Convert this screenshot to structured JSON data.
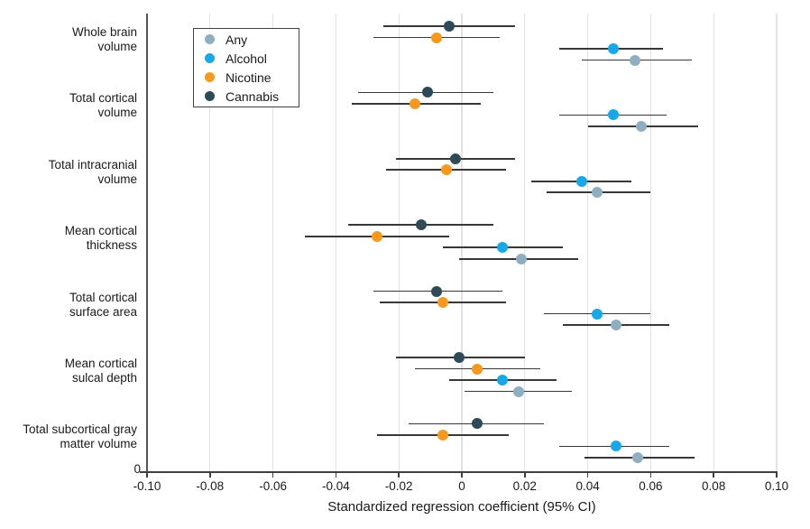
{
  "chart_data": {
    "type": "forest",
    "title": "",
    "xlabel": "Standardized regression coefficient (95% CI)",
    "ylabel": "",
    "y_zero_label": "0",
    "xlim": [
      -0.1,
      0.1
    ],
    "grid": true,
    "legend_position": "inside-top-left",
    "x_tick_values": [
      -0.1,
      -0.08,
      -0.06,
      -0.04,
      -0.02,
      0,
      0.02,
      0.04,
      0.06,
      0.08,
      0.1
    ],
    "x_tick_labels": [
      "-0.10",
      "-0.08",
      "-0.06",
      "-0.04",
      "-0.02",
      "0",
      "0.02",
      "0.04",
      "0.06",
      "0.08",
      "0.10"
    ],
    "categories": [
      "Whole brain volume",
      "Total cortical volume",
      "Total intracranial volume",
      "Mean cortical thickness",
      "Total cortical surface area",
      "Mean cortical sulcal depth",
      "Total subcortical gray matter volume"
    ],
    "category_label_lines": [
      [
        "Whole brain",
        "volume"
      ],
      [
        "Total cortical",
        "volume"
      ],
      [
        "Total intracranial",
        "volume"
      ],
      [
        "Mean cortical",
        "thickness"
      ],
      [
        "Total cortical",
        "surface area"
      ],
      [
        "Mean cortical",
        "sulcal depth"
      ],
      [
        "Total subcortical gray",
        "matter volume"
      ]
    ],
    "series": [
      {
        "name": "Any",
        "color": "#8FAFC0",
        "est": [
          0.055,
          0.057,
          0.043,
          0.019,
          0.049,
          0.018,
          0.056
        ],
        "lo": [
          0.038,
          0.04,
          0.027,
          -0.001,
          0.032,
          0.001,
          0.039
        ],
        "hi": [
          0.073,
          0.075,
          0.06,
          0.037,
          0.066,
          0.035,
          0.074
        ]
      },
      {
        "name": "Alcohol",
        "color": "#18A7E9",
        "est": [
          0.048,
          0.048,
          0.038,
          0.013,
          0.043,
          0.013,
          0.049
        ],
        "lo": [
          0.031,
          0.031,
          0.022,
          -0.006,
          0.026,
          -0.004,
          0.031
        ],
        "hi": [
          0.064,
          0.065,
          0.054,
          0.032,
          0.06,
          0.03,
          0.066
        ]
      },
      {
        "name": "Nicotine",
        "color": "#F8991D",
        "est": [
          -0.008,
          -0.015,
          -0.005,
          -0.027,
          -0.006,
          0.005,
          -0.006
        ],
        "lo": [
          -0.028,
          -0.035,
          -0.024,
          -0.05,
          -0.026,
          -0.015,
          -0.027
        ],
        "hi": [
          0.012,
          0.006,
          0.014,
          -0.004,
          0.014,
          0.025,
          0.015
        ]
      },
      {
        "name": "Cannabis",
        "color": "#2E4A58",
        "est": [
          -0.004,
          -0.011,
          -0.002,
          -0.013,
          -0.008,
          -0.001,
          0.005
        ],
        "lo": [
          -0.025,
          -0.033,
          -0.021,
          -0.036,
          -0.028,
          -0.021,
          -0.017
        ],
        "hi": [
          0.017,
          0.01,
          0.017,
          0.01,
          0.013,
          0.02,
          0.026
        ]
      }
    ],
    "row_draw_order_top_to_bottom": [
      "Cannabis",
      "Nicotine",
      "Alcohol",
      "Any"
    ],
    "colors": {
      "grid": "#E2E2E2",
      "axis": "#404040",
      "ci_line": "#383838",
      "text": "#1A1A1A"
    }
  }
}
